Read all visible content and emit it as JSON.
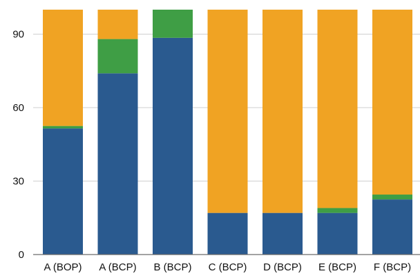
{
  "chart_data": {
    "type": "bar",
    "stacked": true,
    "categories": [
      "A (BOP)",
      "A (BCP)",
      "B (BCP)",
      "C (BCP)",
      "D (BCP)",
      "E (BCP)",
      "F (BCP)"
    ],
    "series": [
      {
        "color": "#2a5a8f",
        "values": [
          51.5,
          74,
          88.5,
          17,
          17,
          17,
          22.5
        ]
      },
      {
        "color": "#3f9e45",
        "values": [
          1,
          14,
          11.5,
          0,
          0,
          2,
          2
        ]
      },
      {
        "color": "#f0a323",
        "values": [
          47.5,
          12,
          0,
          83,
          83,
          81,
          75.5
        ]
      }
    ],
    "yticks": [
      0,
      30,
      60,
      90
    ],
    "ylim": [
      0,
      100
    ],
    "title": "",
    "xlabel": "",
    "ylabel": "",
    "grid": true,
    "legend": "none"
  }
}
